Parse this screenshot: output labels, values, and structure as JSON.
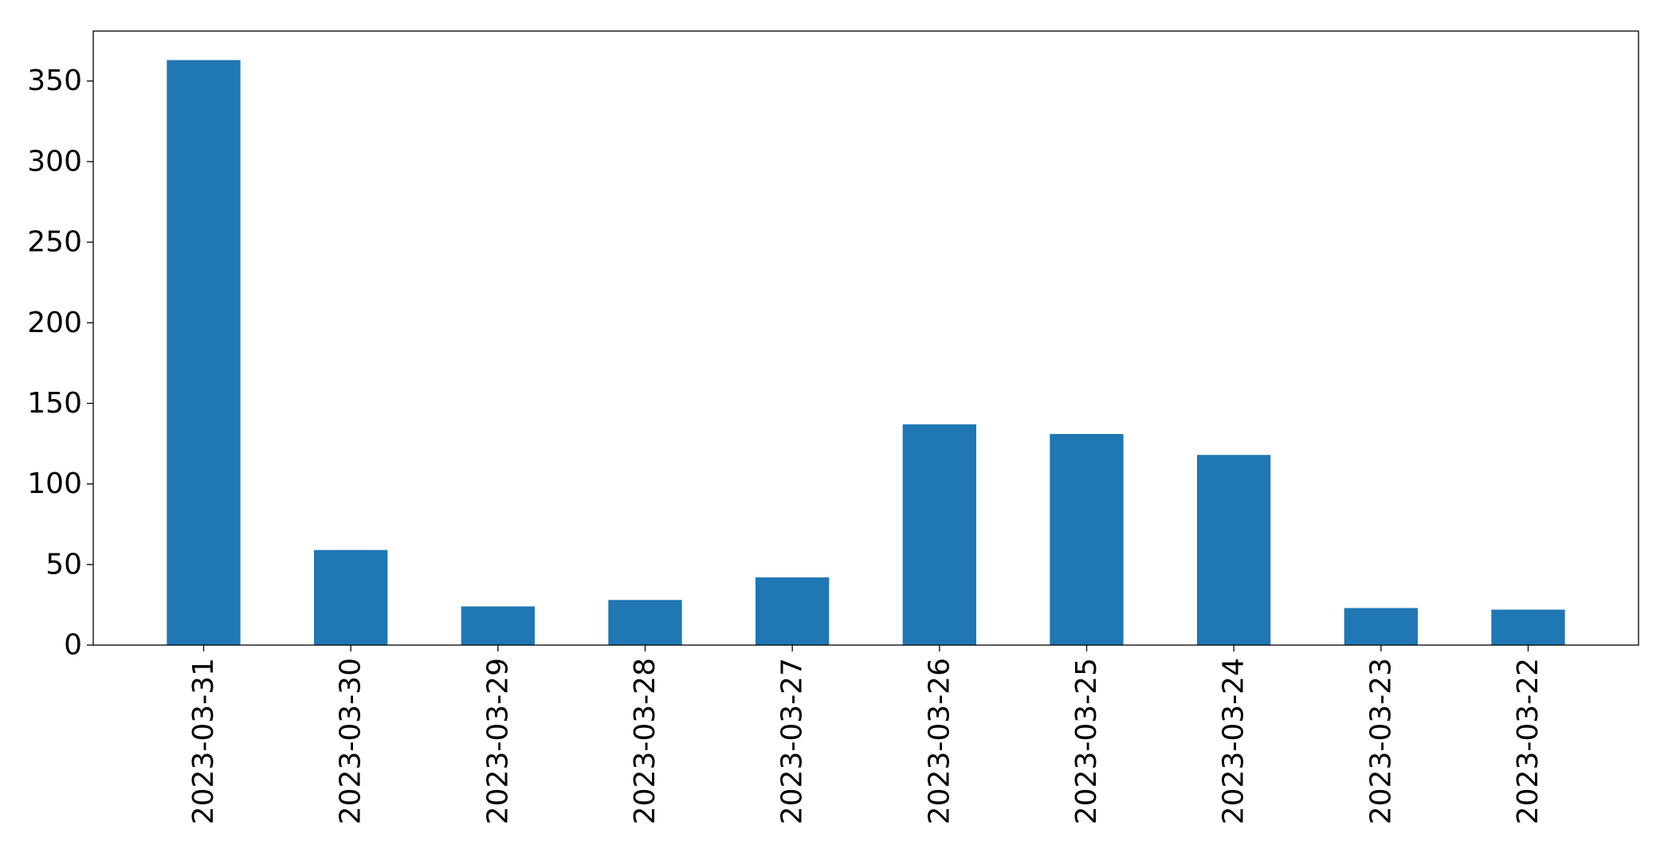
{
  "chart_data": {
    "type": "bar",
    "title": "",
    "xlabel": "",
    "ylabel": "",
    "categories": [
      "2023-03-31",
      "2023-03-30",
      "2023-03-29",
      "2023-03-28",
      "2023-03-27",
      "2023-03-26",
      "2023-03-25",
      "2023-03-24",
      "2023-03-23",
      "2023-03-22"
    ],
    "values": [
      363,
      59,
      24,
      28,
      42,
      137,
      131,
      118,
      23,
      22
    ],
    "ylim": [
      0,
      381
    ],
    "yticks": [
      0,
      50,
      100,
      150,
      200,
      250,
      300,
      350
    ],
    "grid": false,
    "legend": "none",
    "bar_color": "#1f77b4"
  }
}
